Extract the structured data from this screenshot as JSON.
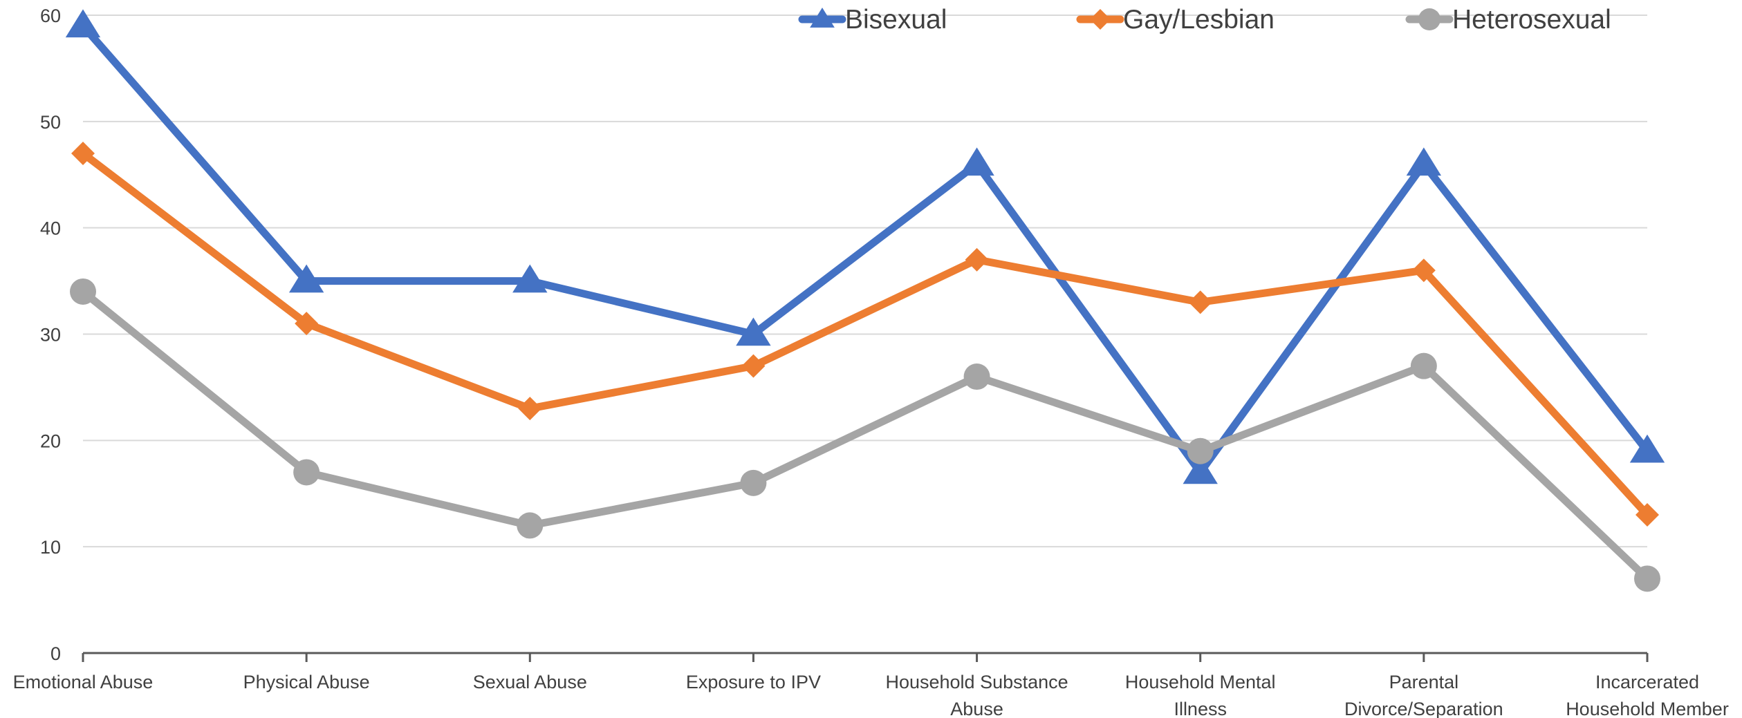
{
  "chart_data": {
    "type": "line",
    "title": "",
    "xlabel": "",
    "ylabel": "",
    "categories": [
      [
        "Emotional Abuse"
      ],
      [
        "Physical Abuse"
      ],
      [
        "Sexual Abuse"
      ],
      [
        "Exposure to IPV"
      ],
      [
        "Household Substance",
        "Abuse"
      ],
      [
        "Household Mental",
        "Illness"
      ],
      [
        "Parental",
        "Divorce/Separation"
      ],
      [
        "Incarcerated",
        "Household Member"
      ]
    ],
    "ylim": [
      0,
      60
    ],
    "yticks": [
      0,
      10,
      20,
      30,
      40,
      50,
      60
    ],
    "grid": true,
    "legend_position": "top",
    "series": [
      {
        "name": "Bisexual",
        "color": "#4472c4",
        "marker": "triangle",
        "values": [
          59,
          35,
          35,
          30,
          46,
          17,
          46,
          19
        ]
      },
      {
        "name": "Gay/Lesbian",
        "color": "#ed7d31",
        "marker": "diamond",
        "values": [
          47,
          31,
          23,
          27,
          37,
          33,
          36,
          13
        ]
      },
      {
        "name": "Heterosexual",
        "color": "#a5a5a5",
        "marker": "circle",
        "values": [
          34,
          17,
          12,
          16,
          26,
          19,
          27,
          7
        ]
      }
    ]
  }
}
